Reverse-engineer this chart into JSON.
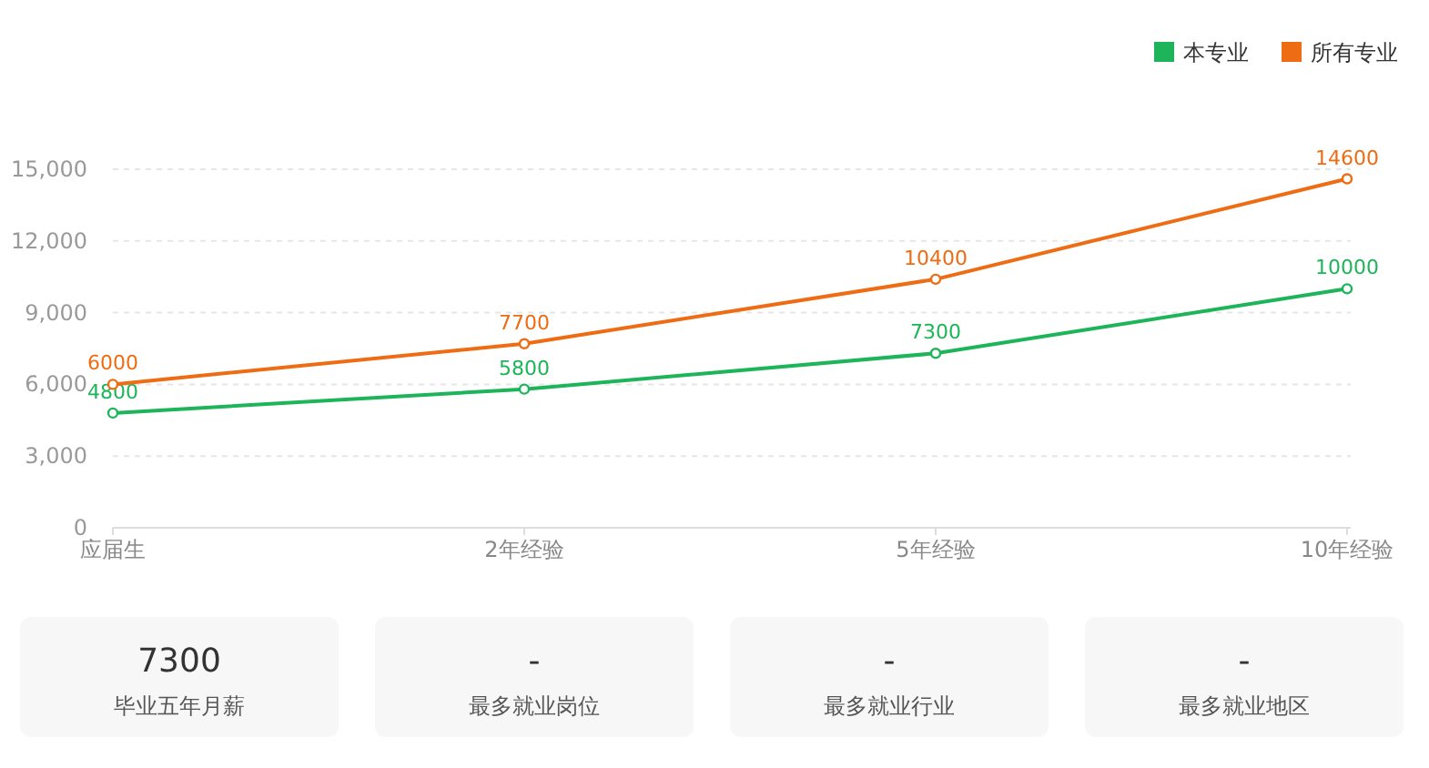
{
  "chart_data": [
    {
      "type": "line",
      "categories": [
        "应届生",
        "2年经验",
        "5年经验",
        "10年经验"
      ],
      "series": [
        {
          "name": "本专业",
          "color": "#1eb55a",
          "values": [
            4800,
            5800,
            7300,
            10000
          ]
        },
        {
          "name": "所有专业",
          "color": "#ee6c14",
          "values": [
            6000,
            7700,
            10400,
            14600
          ]
        }
      ],
      "ylim": [
        0,
        15000
      ],
      "yticks": [
        0,
        {
          "value": 3000,
          "label": "3,000"
        },
        {
          "value": 6000,
          "label": "6,000"
        },
        {
          "value": 9000,
          "label": "9,000"
        },
        {
          "value": 12000,
          "label": "12,000"
        },
        {
          "value": 15000,
          "label": "15,000"
        }
      ],
      "grid": "y",
      "legend": "top right",
      "marker": "circle",
      "data_labels": true
    },
    {
      "type": "other",
      "annotations": [
        "7300",
        "毕业五年月薪",
        "-",
        "最多就业岗位",
        "-",
        "最多就业行业",
        "-",
        "最多就业地区"
      ]
    }
  ]
}
